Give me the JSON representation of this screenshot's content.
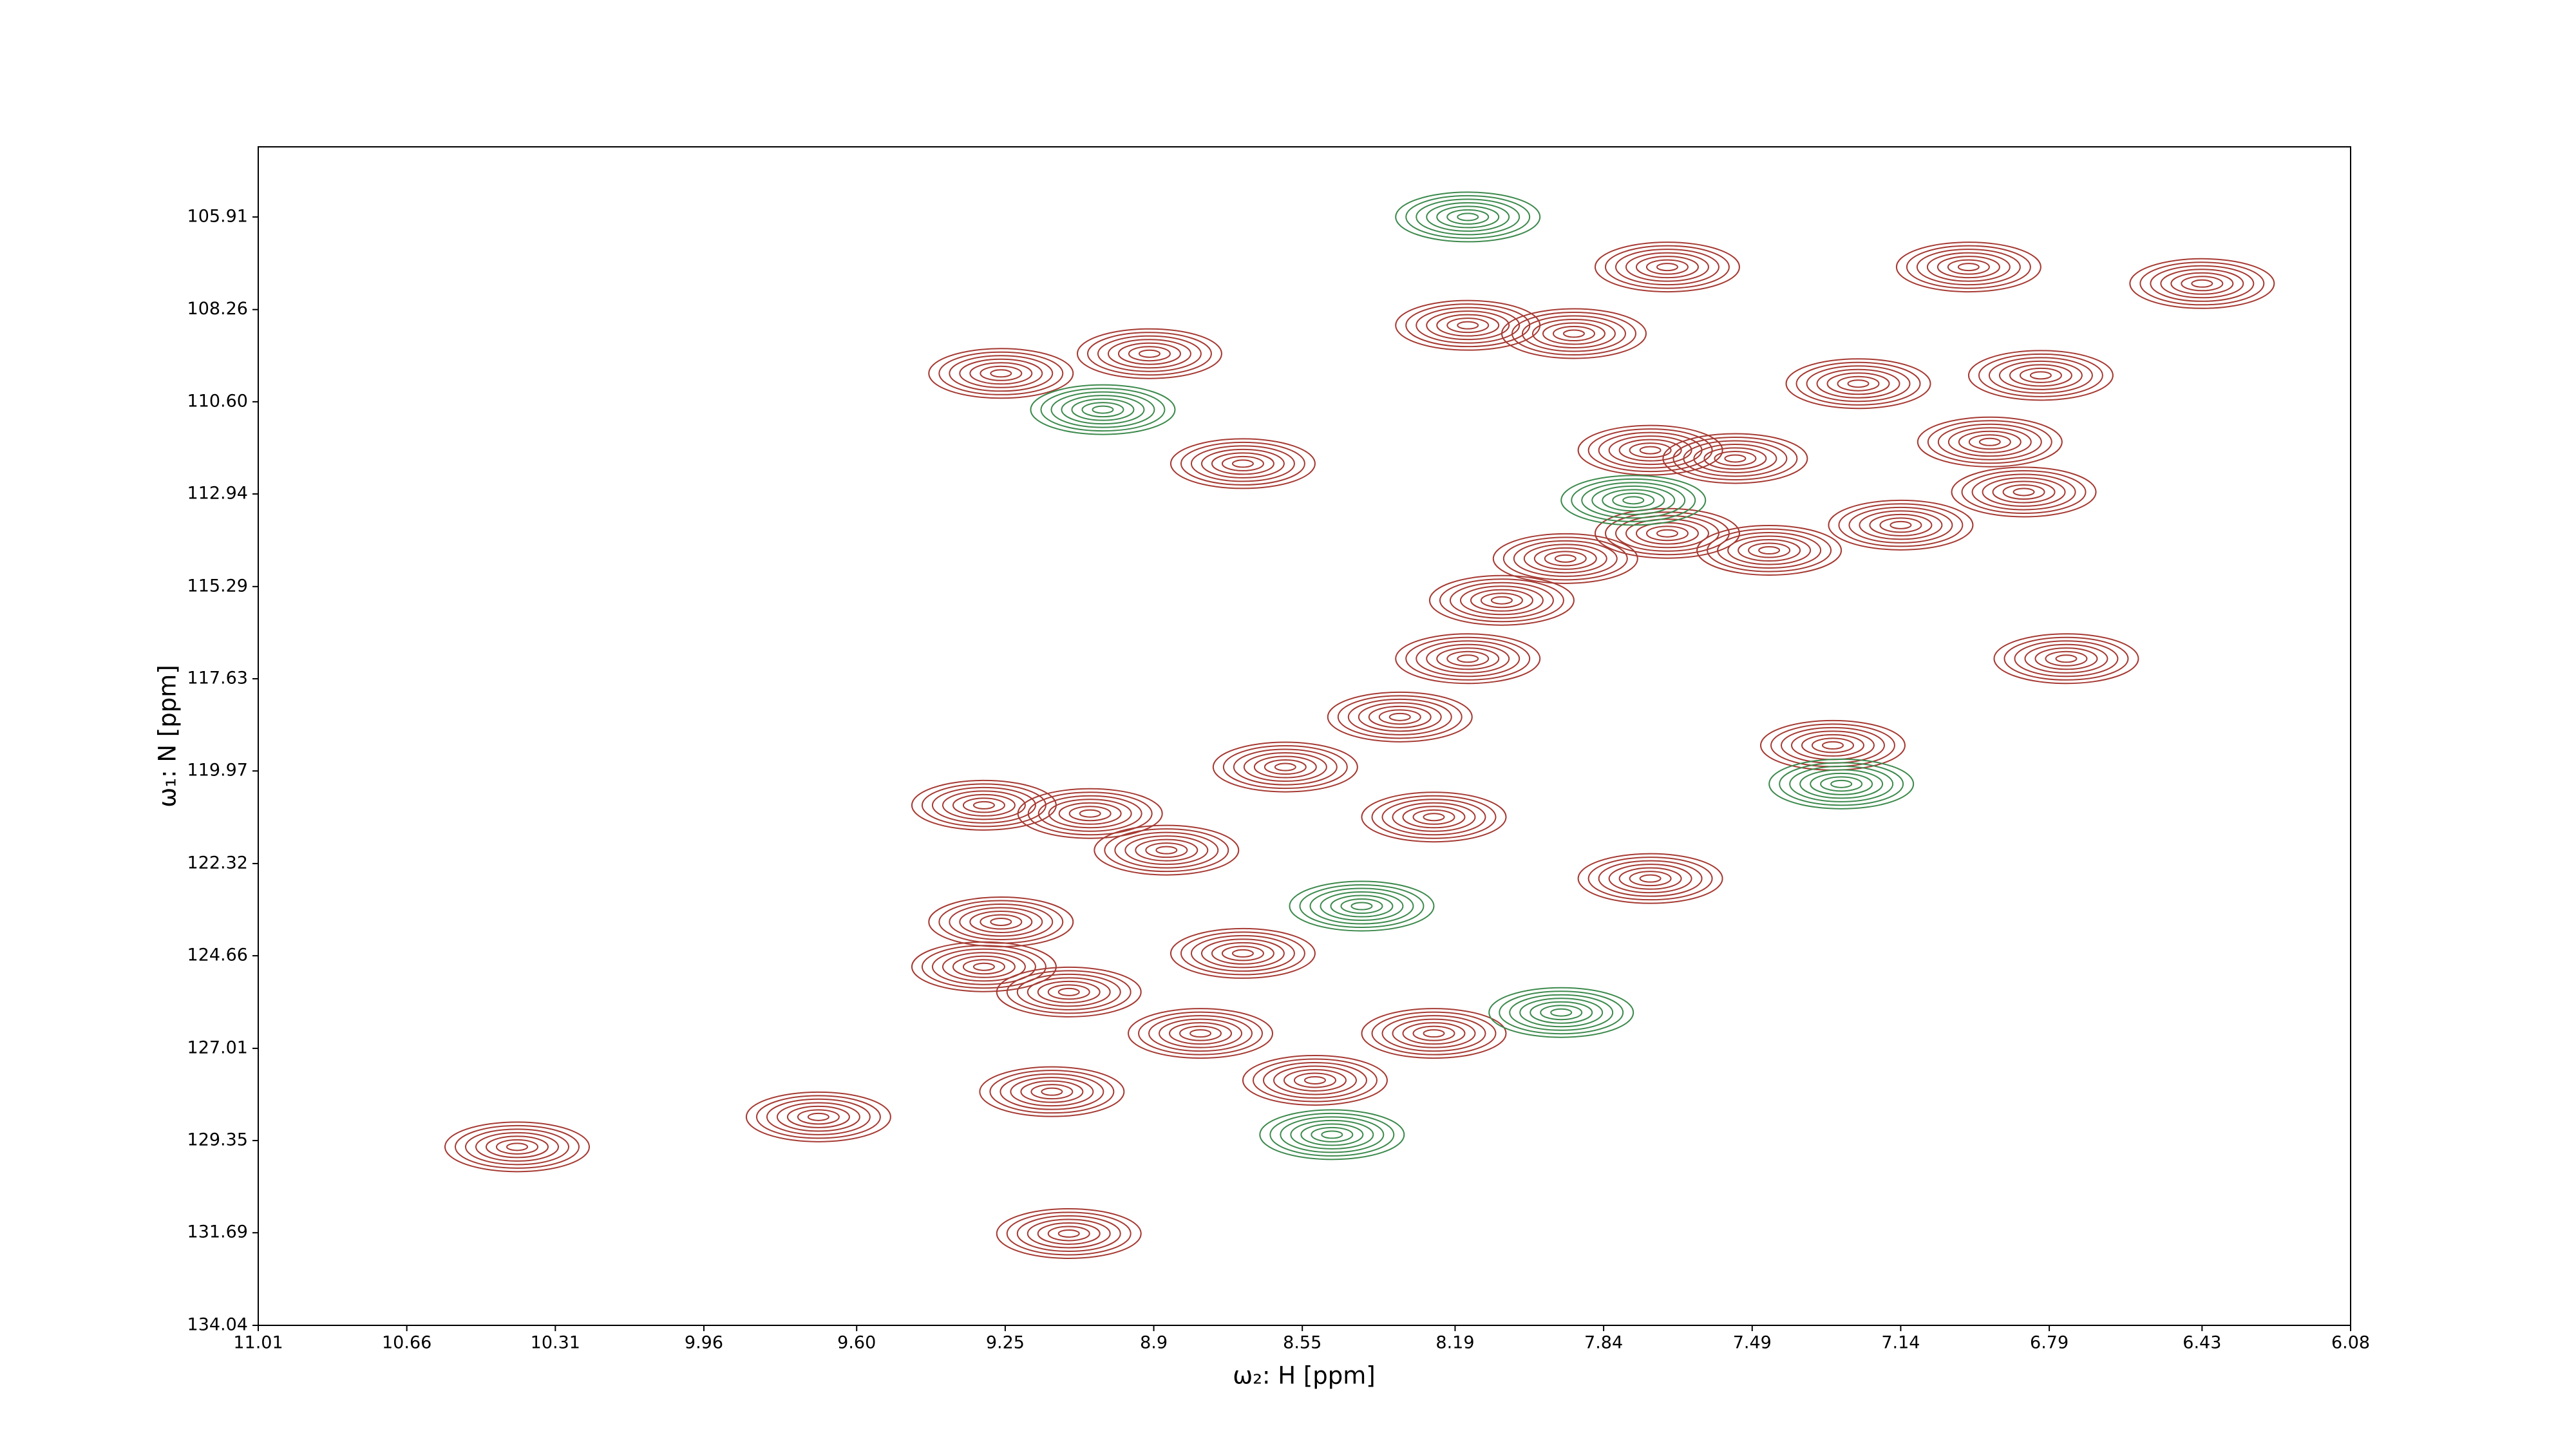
{
  "chart_data": {
    "type": "contour",
    "xlabel": "ω₂: H [ppm]",
    "ylabel": "ω₁: N [ppm]",
    "xlim": [
      11.01,
      6.08
    ],
    "ylim": [
      134.04,
      104.13
    ],
    "xticks": [
      11.01,
      10.66,
      10.31,
      9.96,
      {
        "value": 9.6,
        "label": "9.60"
      },
      9.25,
      8.9,
      8.55,
      8.19,
      7.84,
      7.49,
      7.14,
      6.79,
      6.43,
      6.08
    ],
    "yticks": [
      105.91,
      108.26,
      {
        "value": 110.6,
        "label": "110.60"
      },
      112.94,
      115.29,
      117.63,
      119.97,
      122.32,
      124.66,
      127.01,
      129.35,
      131.69,
      134.04
    ],
    "series": [
      {
        "color": "#a63a33",
        "x": [
          10.4,
          9.69,
          9.1,
          9.26,
          8.91,
          8.69,
          9.3,
          9.26,
          9.3,
          9.1,
          9.14,
          8.79,
          8.52,
          8.24,
          8.69,
          8.59,
          8.32,
          8.24,
          8.16,
          8.08,
          8.16,
          7.91,
          7.69,
          7.73,
          7.53,
          7.45,
          7.69,
          7.93,
          7.3,
          7.24,
          7.14,
          6.93,
          6.85,
          6.81,
          6.98,
          6.43,
          6.75,
          7.73,
          8.87,
          9.05
        ],
        "y": [
          129.51,
          128.75,
          131.71,
          109.88,
          109.38,
          112.17,
          120.84,
          123.8,
          124.94,
          125.58,
          128.11,
          126.63,
          127.82,
          126.63,
          124.6,
          119.87,
          118.6,
          121.14,
          117.12,
          115.64,
          108.66,
          108.87,
          107.18,
          111.83,
          112.04,
          114.37,
          113.94,
          114.58,
          119.32,
          110.14,
          113.73,
          111.62,
          112.89,
          109.93,
          107.18,
          107.6,
          117.12,
          122.7,
          121.98,
          121.05
        ]
      },
      {
        "color": "#3d8a4d",
        "x": [
          8.16,
          7.77,
          7.28,
          8.48,
          9.02,
          8.41,
          7.94
        ],
        "y": [
          105.91,
          113.1,
          120.3,
          129.2,
          110.8,
          123.4,
          126.1
        ]
      }
    ]
  }
}
